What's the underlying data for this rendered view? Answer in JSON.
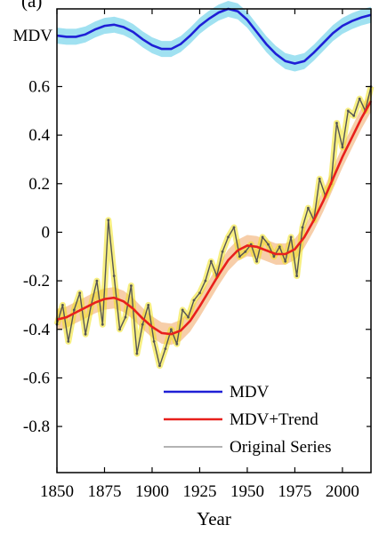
{
  "chart_data": {
    "type": "line",
    "panel_label": "(a)",
    "xlabel": "Year",
    "ylabel": "",
    "xlim": [
      1850,
      2015
    ],
    "ylim": [
      -0.99,
      0.92
    ],
    "x_ticks": [
      1850,
      1875,
      1900,
      1925,
      1950,
      1975,
      2000
    ],
    "x_tick_labels": [
      "1850",
      "1875",
      "1900",
      "1925",
      "1950",
      "1975",
      "2000"
    ],
    "y_ticks": [
      0.6,
      0.4,
      0.2,
      0,
      -0.2,
      -0.4,
      -0.6,
      -0.8
    ],
    "y_tick_labels": [
      "0.6",
      "0.4",
      "0.2",
      "0",
      "-0.2",
      "-0.4",
      "-0.6",
      "-0.8"
    ],
    "mdv_axis_label": "MDV",
    "legend_position": "bottom-right",
    "grid": false,
    "colors": {
      "mdv": "#1f1fd6",
      "mdv_band": "#8fdcef",
      "trend": "#e8201c",
      "trend_band": "#f6c9a0",
      "original": "#555555",
      "original_spread": "#f0e21a"
    },
    "series": [
      {
        "name": "MDV",
        "x": [
          1850,
          1855,
          1860,
          1865,
          1870,
          1875,
          1880,
          1885,
          1890,
          1895,
          1900,
          1905,
          1910,
          1915,
          1920,
          1925,
          1930,
          1935,
          1940,
          1945,
          1950,
          1955,
          1960,
          1965,
          1970,
          1975,
          1980,
          1985,
          1990,
          1995,
          2000,
          2005,
          2010,
          2015
        ],
        "y": [
          0.81,
          0.805,
          0.805,
          0.815,
          0.835,
          0.85,
          0.855,
          0.845,
          0.825,
          0.795,
          0.77,
          0.755,
          0.755,
          0.775,
          0.81,
          0.85,
          0.88,
          0.905,
          0.92,
          0.91,
          0.875,
          0.825,
          0.775,
          0.735,
          0.705,
          0.695,
          0.705,
          0.74,
          0.78,
          0.82,
          0.85,
          0.87,
          0.885,
          0.895
        ]
      },
      {
        "name": "MDV+Trend",
        "x": [
          1850,
          1855,
          1860,
          1865,
          1870,
          1875,
          1880,
          1885,
          1890,
          1895,
          1900,
          1905,
          1910,
          1915,
          1920,
          1925,
          1930,
          1935,
          1940,
          1945,
          1950,
          1955,
          1960,
          1965,
          1970,
          1975,
          1980,
          1985,
          1990,
          1995,
          2000,
          2005,
          2010,
          2015
        ],
        "y": [
          -0.36,
          -0.35,
          -0.33,
          -0.31,
          -0.29,
          -0.275,
          -0.27,
          -0.285,
          -0.315,
          -0.355,
          -0.39,
          -0.415,
          -0.42,
          -0.405,
          -0.365,
          -0.305,
          -0.24,
          -0.175,
          -0.115,
          -0.075,
          -0.055,
          -0.06,
          -0.075,
          -0.09,
          -0.09,
          -0.07,
          -0.02,
          0.05,
          0.13,
          0.22,
          0.31,
          0.39,
          0.47,
          0.54
        ]
      },
      {
        "name": "Original Series",
        "x": [
          1850,
          1853,
          1856,
          1859,
          1862,
          1865,
          1868,
          1871,
          1874,
          1877,
          1880,
          1883,
          1886,
          1889,
          1892,
          1895,
          1898,
          1901,
          1904,
          1907,
          1910,
          1913,
          1916,
          1919,
          1922,
          1925,
          1928,
          1931,
          1934,
          1937,
          1940,
          1943,
          1946,
          1949,
          1952,
          1955,
          1958,
          1961,
          1964,
          1967,
          1970,
          1973,
          1976,
          1979,
          1982,
          1985,
          1988,
          1991,
          1994,
          1997,
          2000,
          2003,
          2006,
          2009,
          2012,
          2015
        ],
        "y": [
          -0.38,
          -0.3,
          -0.45,
          -0.32,
          -0.25,
          -0.42,
          -0.3,
          -0.2,
          -0.38,
          0.05,
          -0.18,
          -0.4,
          -0.35,
          -0.22,
          -0.5,
          -0.38,
          -0.3,
          -0.45,
          -0.55,
          -0.48,
          -0.4,
          -0.46,
          -0.32,
          -0.35,
          -0.28,
          -0.25,
          -0.2,
          -0.12,
          -0.18,
          -0.08,
          -0.02,
          0.02,
          -0.1,
          -0.08,
          -0.05,
          -0.12,
          -0.02,
          -0.05,
          -0.1,
          -0.06,
          -0.12,
          -0.02,
          -0.18,
          0.02,
          0.1,
          0.05,
          0.22,
          0.15,
          0.2,
          0.45,
          0.35,
          0.5,
          0.48,
          0.55,
          0.5,
          0.6
        ]
      }
    ]
  }
}
